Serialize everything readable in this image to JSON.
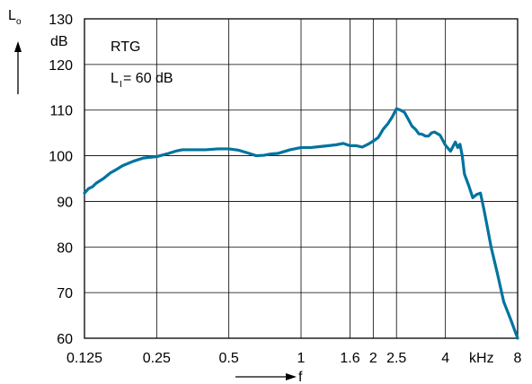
{
  "chart_data": {
    "type": "line",
    "x_scale": "log",
    "y_axis_label": "L",
    "y_axis_label_subscript": "o",
    "y_unit": "dB",
    "x_axis_label": "f",
    "x_unit": "kHz",
    "annotation_line1": "RTG",
    "annotation_line2_main": "L",
    "annotation_line2_subscript": "I",
    "annotation_line2_rest": " = 60 dB",
    "xlim": [
      0.125,
      8
    ],
    "ylim": [
      60,
      130
    ],
    "y_ticks": [
      {
        "value": 60,
        "label": "60"
      },
      {
        "value": 70,
        "label": "70"
      },
      {
        "value": 80,
        "label": "80"
      },
      {
        "value": 90,
        "label": "90"
      },
      {
        "value": 100,
        "label": "100"
      },
      {
        "value": 110,
        "label": "110"
      },
      {
        "value": 120,
        "label": "120"
      },
      {
        "value": 130,
        "label": "130"
      }
    ],
    "x_ticks": [
      {
        "value": 0.125,
        "label": "0.125"
      },
      {
        "value": 0.25,
        "label": "0.25"
      },
      {
        "value": 0.5,
        "label": "0.5"
      },
      {
        "value": 1,
        "label": "1"
      },
      {
        "value": 1.6,
        "label": "1.6"
      },
      {
        "value": 2,
        "label": "2"
      },
      {
        "value": 2.5,
        "label": "2.5"
      },
      {
        "value": 4,
        "label": "4"
      },
      {
        "value": 8,
        "label": "8"
      }
    ],
    "grid": true,
    "line_color": "#00739e",
    "series": [
      {
        "x": [
          0.125,
          0.13,
          0.135,
          0.14,
          0.15,
          0.16,
          0.17,
          0.18,
          0.2,
          0.22,
          0.25,
          0.28,
          0.3,
          0.32,
          0.35,
          0.4,
          0.45,
          0.5,
          0.55,
          0.6,
          0.65,
          0.7,
          0.75,
          0.8,
          0.9,
          1.0,
          1.1,
          1.2,
          1.3,
          1.4,
          1.5,
          1.6,
          1.7,
          1.8,
          1.9,
          2.0,
          2.1,
          2.2,
          2.3,
          2.4,
          2.5,
          2.6,
          2.7,
          2.8,
          2.9,
          3.0,
          3.1,
          3.2,
          3.3,
          3.4,
          3.5,
          3.6,
          3.8,
          4.0,
          4.2,
          4.4,
          4.5,
          4.6,
          4.7,
          4.8,
          5.0,
          5.2,
          5.4,
          5.6,
          5.8,
          6.0,
          6.2,
          6.6,
          7.0,
          7.5,
          8.0
        ],
        "y": [
          91.8,
          92.8,
          93.2,
          94.0,
          95.0,
          96.2,
          97.0,
          97.8,
          98.8,
          99.5,
          99.8,
          100.5,
          101.0,
          101.3,
          101.3,
          101.3,
          101.5,
          101.5,
          101.2,
          100.6,
          100.0,
          100.1,
          100.4,
          100.5,
          101.3,
          101.8,
          101.8,
          102.0,
          102.2,
          102.4,
          102.7,
          102.2,
          102.2,
          101.9,
          102.5,
          103.2,
          104.0,
          105.8,
          107.0,
          108.5,
          110.3,
          110.0,
          109.5,
          108.0,
          106.5,
          105.8,
          104.8,
          104.7,
          104.3,
          104.3,
          105.0,
          105.2,
          104.5,
          102.3,
          101.0,
          103.0,
          101.8,
          102.5,
          100.0,
          96.0,
          93.5,
          90.8,
          91.5,
          91.8,
          88.0,
          84.0,
          80.0,
          74.0,
          68.0,
          64.0,
          59.5
        ]
      }
    ]
  }
}
